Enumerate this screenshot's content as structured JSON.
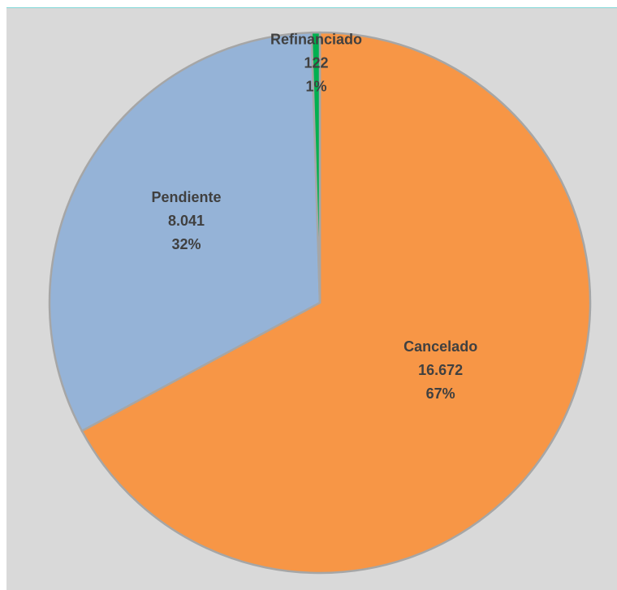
{
  "chart_data": {
    "type": "pie",
    "title": "",
    "slices": [
      {
        "name": "Cancelado",
        "value": 16672,
        "value_label": "16.672",
        "percent_label": "67%",
        "color": "#f79646"
      },
      {
        "name": "Pendiente",
        "value": 8041,
        "value_label": "8.041",
        "percent_label": "32%",
        "color": "#95b3d7"
      },
      {
        "name": "Refinanciado",
        "value": 122,
        "value_label": "122",
        "percent_label": "1%",
        "color": "#00b050"
      }
    ],
    "background_color": "#d9d9d9",
    "legend": "none",
    "data_labels": "inside, category name + value + percentage"
  }
}
